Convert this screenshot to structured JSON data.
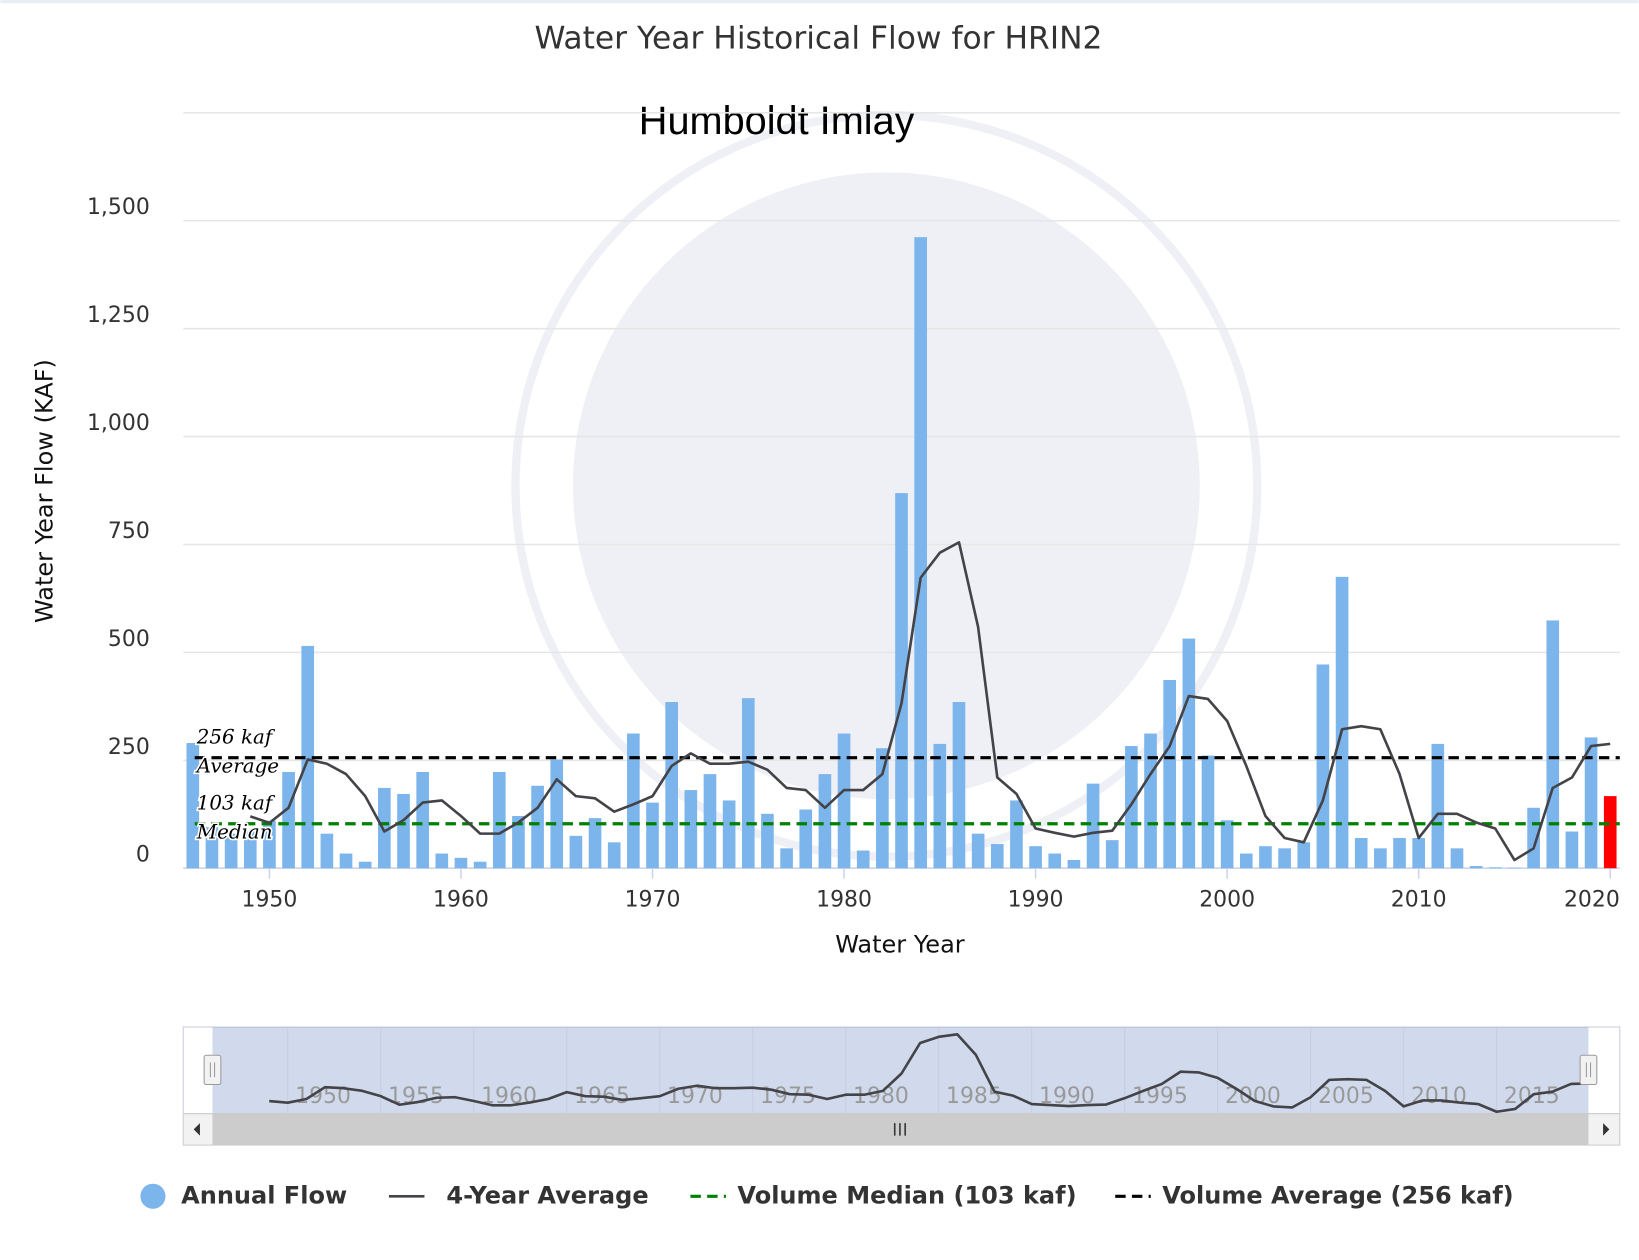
{
  "chart_data": {
    "type": "bar",
    "title": "Water Year Historical Flow for HRIN2",
    "subtitle": "Humboldt Imlay",
    "x_label": "Water Year",
    "y_label": "Water Year Flow (KAF)",
    "x": [
      1946,
      1947,
      1948,
      1949,
      1950,
      1951,
      1952,
      1953,
      1954,
      1955,
      1956,
      1957,
      1958,
      1959,
      1960,
      1961,
      1962,
      1963,
      1964,
      1965,
      1966,
      1967,
      1968,
      1969,
      1970,
      1971,
      1972,
      1973,
      1974,
      1975,
      1976,
      1977,
      1978,
      1979,
      1980,
      1981,
      1982,
      1983,
      1984,
      1985,
      1986,
      1987,
      1988,
      1989,
      1990,
      1991,
      1992,
      1993,
      1994,
      1995,
      1996,
      1997,
      1998,
      1999,
      2000,
      2001,
      2002,
      2003,
      2004,
      2005,
      2006,
      2007,
      2008,
      2009,
      2010,
      2011,
      2012,
      2013,
      2014,
      2015,
      2016,
      2017,
      2018,
      2019,
      2020
    ],
    "xlim": [
      1945.5,
      2020.5
    ],
    "xticks": [
      1950,
      1960,
      1970,
      1980,
      1990,
      2000,
      2010,
      2020
    ],
    "ylim": [
      0,
      1750
    ],
    "yticks": [
      0,
      250,
      500,
      750,
      {
        "value": 1000,
        "label": "1,000"
      },
      {
        "value": 1250,
        "label": "1,250"
      },
      {
        "value": 1500,
        "label": "1,500"
      }
    ],
    "grid": true,
    "series": [
      {
        "name": "Annual Flow",
        "type": "bar",
        "color": "#7cb5ec",
        "last_color": "#ff0000",
        "values": [
          290,
          95,
          80,
          85,
          110,
          223,
          515,
          80,
          34,
          15,
          186,
          172,
          223,
          34,
          24,
          15,
          223,
          121,
          191,
          252,
          75,
          116,
          60,
          312,
          152,
          385,
          181,
          218,
          157,
          394,
          126,
          46,
          136,
          218,
          312,
          41,
          278,
          869,
          1462,
          288,
          385,
          80,
          56,
          157,
          51,
          34,
          19,
          196,
          65,
          283,
          312,
          436,
          532,
          261,
          111,
          34,
          51,
          46,
          60,
          472,
          675,
          70,
          46,
          70,
          70,
          288,
          46,
          5,
          2,
          1,
          140,
          574,
          85,
          303,
          167
        ]
      },
      {
        "name": "4-Year Average",
        "type": "line",
        "color": "#434348",
        "values": [
          null,
          null,
          null,
          120,
          105,
          140,
          252,
          242,
          218,
          167,
          85,
          111,
          152,
          157,
          121,
          80,
          80,
          106,
          140,
          206,
          167,
          162,
          131,
          148,
          167,
          237,
          266,
          242,
          242,
          247,
          228,
          186,
          181,
          140,
          181,
          181,
          218,
          382,
          673,
          731,
          755,
          559,
          210,
          172,
          92,
          82,
          73,
          82,
          87,
          148,
          218,
          283,
          399,
          392,
          341,
          237,
          121,
          70,
          60,
          157,
          322,
          329,
          322,
          218,
          70,
          126,
          126,
          106,
          92,
          19,
          46,
          186,
          210,
          283,
          288
        ]
      }
    ],
    "plot_lines": [
      {
        "name": "Volume Median (103 kaf)",
        "value": 103,
        "color": "#008000",
        "label": [
          "103 kaf",
          "Median"
        ]
      },
      {
        "name": "Volume Average (256 kaf)",
        "value": 256,
        "color": "#000000",
        "label": [
          "256 kaf",
          "Average"
        ]
      }
    ],
    "navigator": {
      "xticks": [
        1950,
        1955,
        1960,
        1965,
        1970,
        1975,
        1980,
        1985,
        1990,
        1995,
        2000,
        2005,
        2010,
        2015
      ]
    }
  }
}
